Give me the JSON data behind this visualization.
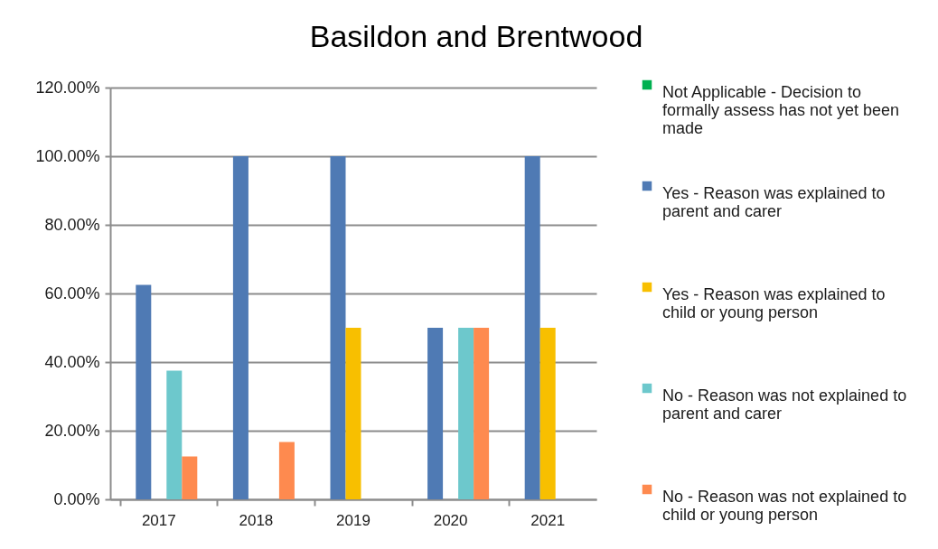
{
  "chart_data": {
    "type": "bar",
    "title": "Basildon and Brentwood",
    "categories": [
      "2017",
      "2018",
      "2019",
      "2020",
      "2021"
    ],
    "series": [
      {
        "name": "Not Applicable - Decision to formally assess has not yet been made",
        "color": "#00b050",
        "values": [
          null,
          null,
          null,
          null,
          null
        ]
      },
      {
        "name": "Yes - Reason was explained to parent and carer",
        "color": "#4f7ab4",
        "values": [
          62.5,
          100,
          100,
          50,
          100
        ]
      },
      {
        "name": "Yes -  Reason was explained to child or young person",
        "color": "#f8bf00",
        "values": [
          null,
          null,
          50,
          null,
          50
        ]
      },
      {
        "name": "No - Reason was not explained to parent and carer",
        "color": "#6dc8cc",
        "values": [
          37.5,
          null,
          null,
          50,
          null
        ]
      },
      {
        "name": "No - Reason was not explained to child or young person",
        "color": "#fe8a4f",
        "values": [
          12.5,
          16.7,
          null,
          50,
          null
        ]
      }
    ],
    "ylim": [
      0,
      120
    ],
    "yticks": [
      {
        "value": 0,
        "label": "0.00%"
      },
      {
        "value": 20,
        "label": "20.00%"
      },
      {
        "value": 40,
        "label": "40.00%"
      },
      {
        "value": 60,
        "label": "60.00%"
      },
      {
        "value": 80,
        "label": "80.00%"
      },
      {
        "value": 100,
        "label": "100.00%"
      },
      {
        "value": 120,
        "label": "120.00%"
      }
    ],
    "grid": "y",
    "legend": "right"
  }
}
